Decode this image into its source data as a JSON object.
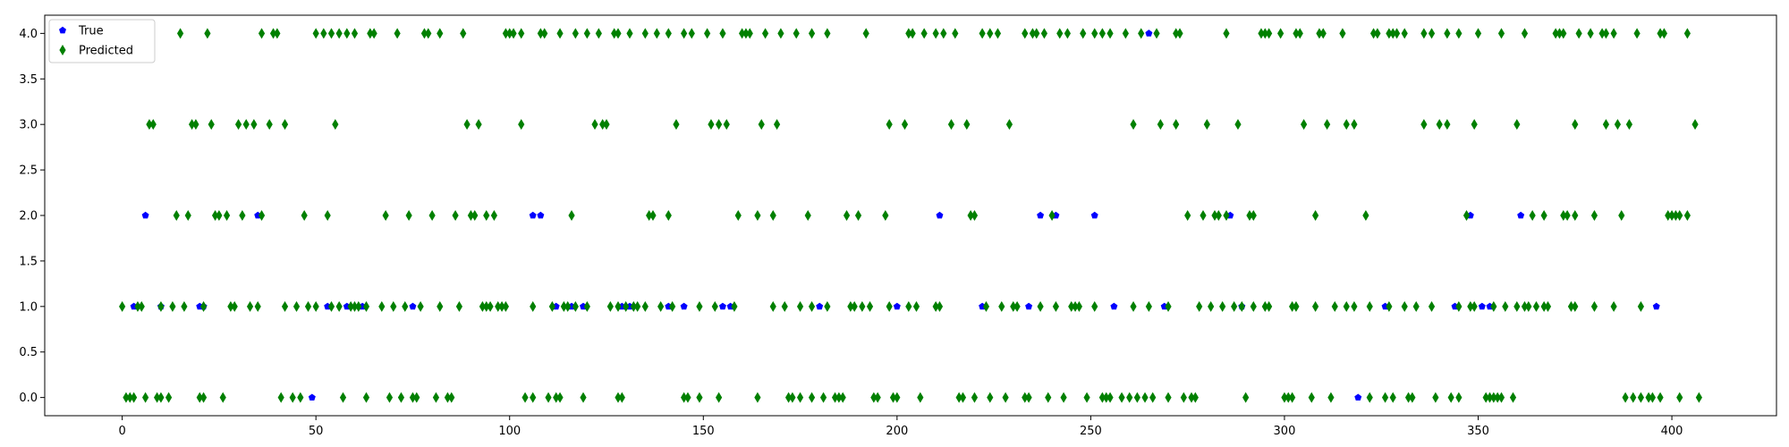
{
  "chart_data": {
    "type": "scatter",
    "title": "",
    "xlabel": "",
    "ylabel": "",
    "xlim": [
      -20,
      427
    ],
    "ylim": [
      -0.2,
      4.2
    ],
    "x_ticks": [
      0,
      50,
      100,
      150,
      200,
      250,
      300,
      350,
      400
    ],
    "y_ticks": [
      0.0,
      0.5,
      1.0,
      1.5,
      2.0,
      2.5,
      3.0,
      3.5,
      4.0
    ],
    "x_tick_labels": [
      "0",
      "50",
      "100",
      "150",
      "200",
      "250",
      "300",
      "350",
      "400"
    ],
    "y_tick_labels": [
      "0.0",
      "0.5",
      "1.0",
      "1.5",
      "2.0",
      "2.5",
      "3.0",
      "3.5",
      "4.0"
    ],
    "grid": false,
    "legend": {
      "placement": "top-left"
    },
    "series": [
      {
        "name": "True",
        "marker": "pentagon",
        "color": "#0000ff",
        "points": {
          "0": [
            49,
            319
          ],
          "1": [
            3,
            10,
            20,
            21,
            53,
            58,
            62,
            75,
            112,
            116,
            119,
            129,
            131,
            141,
            145,
            155,
            157,
            180,
            200,
            222,
            234,
            256,
            269,
            289,
            326,
            344,
            351,
            353,
            396
          ],
          "2": [
            6,
            35,
            106,
            108,
            211,
            237,
            241,
            251,
            286,
            348,
            361
          ],
          "3": [],
          "4": [
            265
          ]
        }
      },
      {
        "name": "Predicted",
        "marker": "thin_diamond",
        "color": "#008000",
        "points": {
          "0": [
            1,
            2,
            3,
            6,
            9,
            10,
            12,
            20,
            21,
            26,
            41,
            44,
            46,
            57,
            63,
            69,
            72,
            75,
            76,
            81,
            84,
            85,
            104,
            106,
            110,
            112,
            113,
            119,
            128,
            129,
            145,
            146,
            149,
            154,
            164,
            172,
            173,
            175,
            178,
            181,
            184,
            185,
            186,
            194,
            195,
            199,
            200,
            206,
            216,
            217,
            220,
            224,
            228,
            233,
            234,
            239,
            243,
            249,
            253,
            254,
            255,
            258,
            260,
            262,
            264,
            266,
            270,
            274,
            276,
            277,
            290,
            300,
            301,
            302,
            307,
            312,
            322,
            326,
            328,
            332,
            333,
            339,
            343,
            345,
            352,
            353,
            354,
            355,
            356,
            359,
            388,
            390,
            392,
            394,
            395,
            397,
            402,
            407
          ],
          "1": [
            0,
            4,
            5,
            10,
            13,
            16,
            21,
            28,
            29,
            33,
            35,
            42,
            45,
            48,
            50,
            54,
            56,
            59,
            60,
            61,
            63,
            67,
            70,
            73,
            77,
            82,
            87,
            93,
            94,
            95,
            97,
            98,
            99,
            106,
            111,
            114,
            115,
            117,
            120,
            126,
            128,
            130,
            132,
            133,
            135,
            139,
            142,
            149,
            153,
            158,
            168,
            171,
            175,
            178,
            182,
            188,
            189,
            191,
            193,
            198,
            203,
            205,
            210,
            211,
            223,
            227,
            230,
            231,
            237,
            241,
            245,
            246,
            247,
            251,
            261,
            265,
            270,
            278,
            281,
            284,
            287,
            289,
            292,
            295,
            296,
            302,
            303,
            308,
            313,
            316,
            318,
            322,
            327,
            331,
            334,
            338,
            345,
            348,
            349,
            354,
            357,
            360,
            362,
            363,
            365,
            367,
            368,
            374,
            375,
            380,
            385,
            392
          ],
          "2": [
            14,
            17,
            24,
            25,
            27,
            31,
            36,
            47,
            53,
            68,
            74,
            80,
            86,
            90,
            91,
            94,
            96,
            116,
            136,
            137,
            141,
            159,
            164,
            168,
            177,
            187,
            190,
            197,
            219,
            220,
            240,
            275,
            279,
            282,
            283,
            285,
            291,
            292,
            308,
            321,
            347,
            364,
            367,
            372,
            373,
            375,
            380,
            387,
            399,
            400,
            401,
            402,
            404
          ],
          "3": [
            7,
            8,
            18,
            19,
            23,
            30,
            32,
            34,
            38,
            42,
            55,
            89,
            92,
            103,
            122,
            124,
            125,
            143,
            152,
            154,
            156,
            165,
            169,
            198,
            202,
            214,
            218,
            229,
            261,
            268,
            272,
            280,
            288,
            305,
            311,
            316,
            318,
            336,
            340,
            342,
            349,
            360,
            375,
            383,
            386,
            389,
            406
          ],
          "4": [
            15,
            22,
            36,
            39,
            40,
            50,
            52,
            54,
            56,
            58,
            60,
            64,
            65,
            71,
            78,
            79,
            82,
            88,
            99,
            100,
            101,
            103,
            108,
            109,
            113,
            117,
            120,
            123,
            127,
            128,
            131,
            135,
            138,
            141,
            145,
            147,
            151,
            155,
            160,
            161,
            162,
            166,
            170,
            174,
            178,
            182,
            192,
            203,
            204,
            207,
            210,
            212,
            215,
            222,
            224,
            226,
            233,
            235,
            236,
            238,
            242,
            244,
            248,
            251,
            253,
            255,
            259,
            263,
            267,
            272,
            273,
            285,
            294,
            295,
            296,
            299,
            303,
            304,
            309,
            310,
            315,
            323,
            324,
            327,
            328,
            329,
            331,
            336,
            338,
            342,
            345,
            350,
            356,
            362,
            370,
            371,
            372,
            376,
            379,
            382,
            383,
            385,
            391,
            397,
            398,
            404
          ]
        }
      }
    ]
  },
  "colors": {
    "true": "#0000ff",
    "predicted": "#008000",
    "axes": "#000000",
    "legend_border": "#cccccc"
  }
}
